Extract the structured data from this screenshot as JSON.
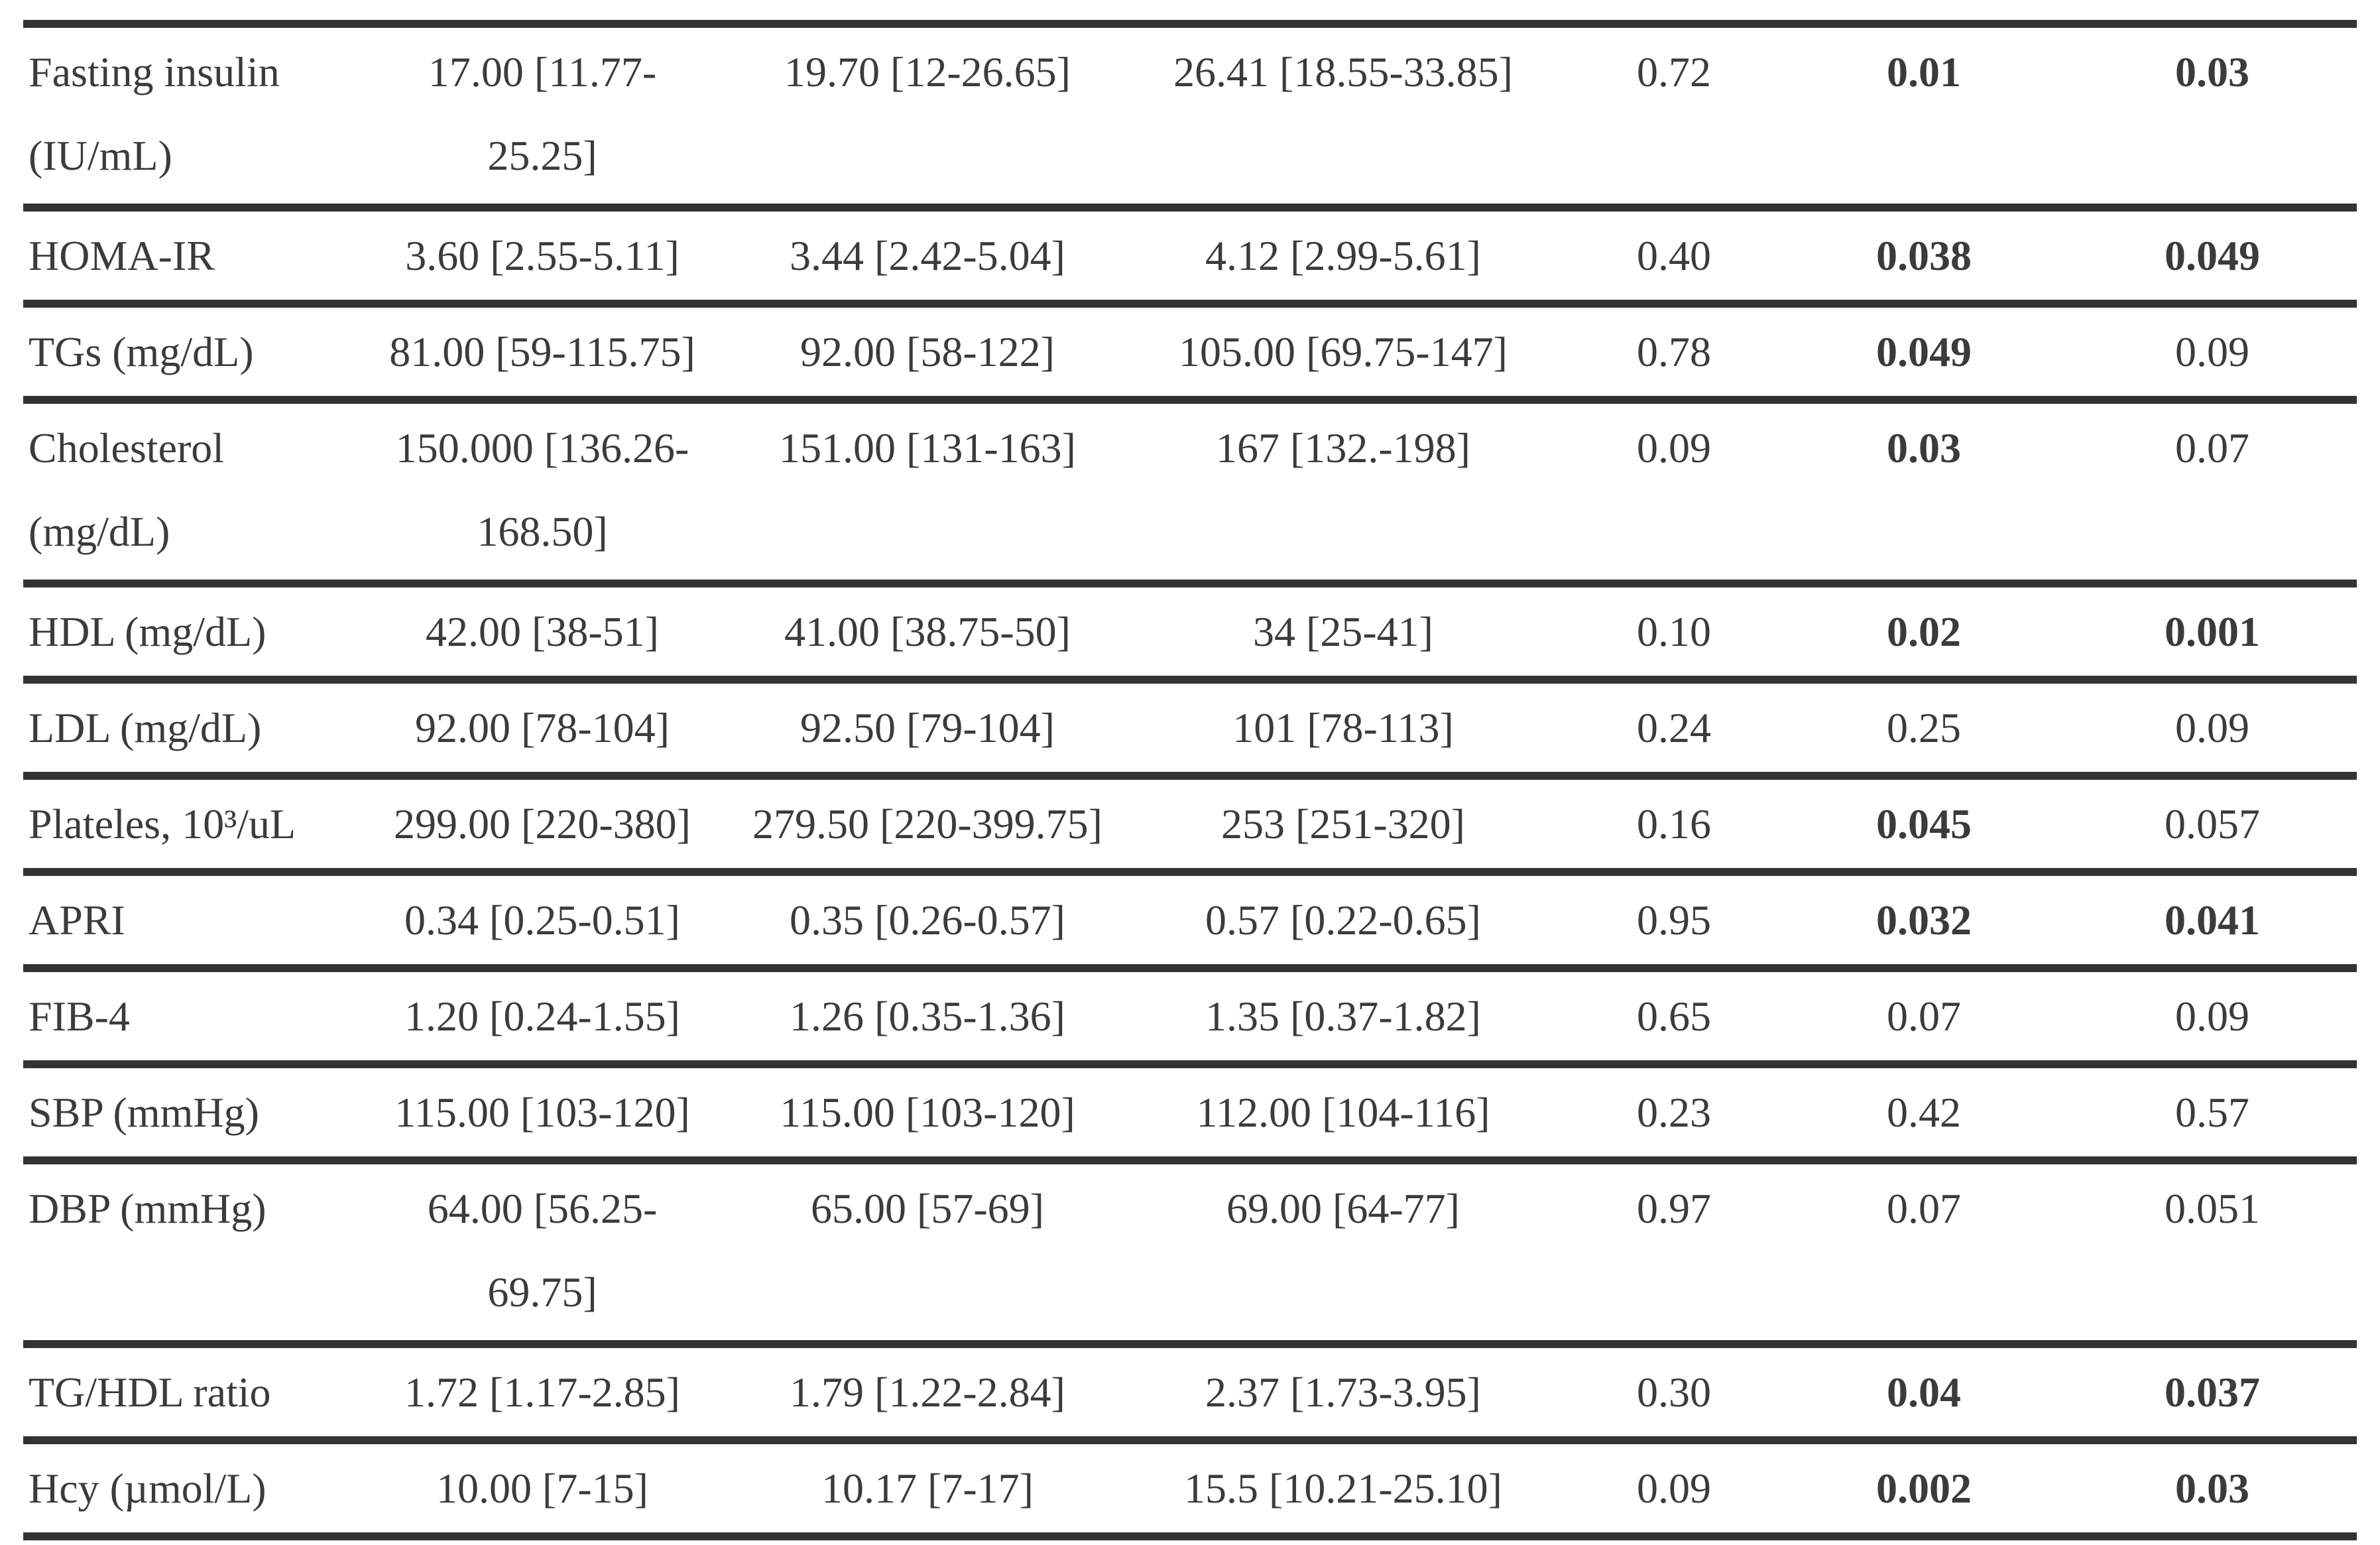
{
  "table": {
    "description": "Clinical/biochemical parameters table fragment: median [IQR] values for three groups followed by three p-value columns",
    "colors": {
      "text": "#3b3b3b",
      "border": "#333333",
      "background": "#ffffff"
    },
    "rows": [
      {
        "name": "Fasting insulin",
        "name2": "(IU/mL)",
        "v1": "17.00 [11.77-",
        "v1b": "25.25]",
        "v2": "19.70 [12-26.65]",
        "v3": "26.41 [18.55-33.85]",
        "p1": "0.72",
        "p2": "0.01",
        "p3": "0.03",
        "p2_bold": true,
        "p3_bold": true
      },
      {
        "name": "HOMA-IR",
        "v1": "3.60 [2.55-5.11]",
        "v2": "3.44 [2.42-5.04]",
        "v3": "4.12 [2.99-5.61]",
        "p1": "0.40",
        "p2": "0.038",
        "p3": "0.049",
        "p2_bold": true,
        "p3_bold": true
      },
      {
        "name": "TGs (mg/dL)",
        "v1": "81.00 [59-115.75]",
        "v2": "92.00 [58-122]",
        "v3": "105.00 [69.75-147]",
        "p1": "0.78",
        "p2": "0.049",
        "p3": "0.09",
        "p2_bold": true,
        "p3_bold": false
      },
      {
        "name": "Cholesterol",
        "name2": "(mg/dL)",
        "v1": "150.000 [136.26-",
        "v1b": "168.50]",
        "v2": "151.00 [131-163]",
        "v3": "167 [132.-198]",
        "p1": "0.09",
        "p2": "0.03",
        "p3": "0.07",
        "p2_bold": true,
        "p3_bold": false
      },
      {
        "name": "HDL (mg/dL)",
        "v1": "42.00 [38-51]",
        "v2": "41.00 [38.75-50]",
        "v3": "34 [25-41]",
        "p1": "0.10",
        "p2": "0.02",
        "p3": "0.001",
        "p2_bold": true,
        "p3_bold": true
      },
      {
        "name": "LDL (mg/dL)",
        "v1": "92.00 [78-104]",
        "v2": "92.50 [79-104]",
        "v3": "101 [78-113]",
        "p1": "0.24",
        "p2": "0.25",
        "p3": "0.09",
        "p2_bold": false,
        "p3_bold": false
      },
      {
        "name": "Plateles, 10³/uL",
        "v1": "299.00 [220-380]",
        "v2": "279.50 [220-399.75]",
        "v3": "253 [251-320]",
        "p1": "0.16",
        "p2": "0.045",
        "p3": "0.057",
        "p2_bold": true,
        "p3_bold": false
      },
      {
        "name": "APRI",
        "v1": "0.34 [0.25-0.51]",
        "v2": "0.35 [0.26-0.57]",
        "v3": "0.57 [0.22-0.65]",
        "p1": "0.95",
        "p2": "0.032",
        "p3": "0.041",
        "p2_bold": true,
        "p3_bold": true
      },
      {
        "name": "FIB-4",
        "v1": "1.20 [0.24-1.55]",
        "v2": "1.26 [0.35-1.36]",
        "v3": "1.35 [0.37-1.82]",
        "p1": "0.65",
        "p2": "0.07",
        "p3": "0.09",
        "p2_bold": false,
        "p3_bold": false
      },
      {
        "name": "SBP (mmHg)",
        "v1": "115.00 [103-120]",
        "v2": "115.00 [103-120]",
        "v3": "112.00 [104-116]",
        "p1": "0.23",
        "p2": "0.42",
        "p3": "0.57",
        "p2_bold": false,
        "p3_bold": false
      },
      {
        "name": "DBP (mmHg)",
        "v1": "64.00 [56.25-",
        "v1b": "69.75]",
        "v2": "65.00 [57-69]",
        "v3": "69.00 [64-77]",
        "p1": "0.97",
        "p2": "0.07",
        "p3": "0.051",
        "p2_bold": false,
        "p3_bold": false
      },
      {
        "name": "TG/HDL ratio",
        "v1": "1.72 [1.17-2.85]",
        "v2": "1.79 [1.22-2.84]",
        "v3": "2.37 [1.73-3.95]",
        "p1": "0.30",
        "p2": "0.04",
        "p3": "0.037",
        "p2_bold": true,
        "p3_bold": true
      },
      {
        "name": "Hcy (µmol/L)",
        "v1": "10.00 [7-15]",
        "v2": "10.17 [7-17]",
        "v3": "15.5 [10.21-25.10]",
        "p1": "0.09",
        "p2": "0.002",
        "p3": "0.03",
        "p2_bold": true,
        "p3_bold": true
      }
    ]
  }
}
